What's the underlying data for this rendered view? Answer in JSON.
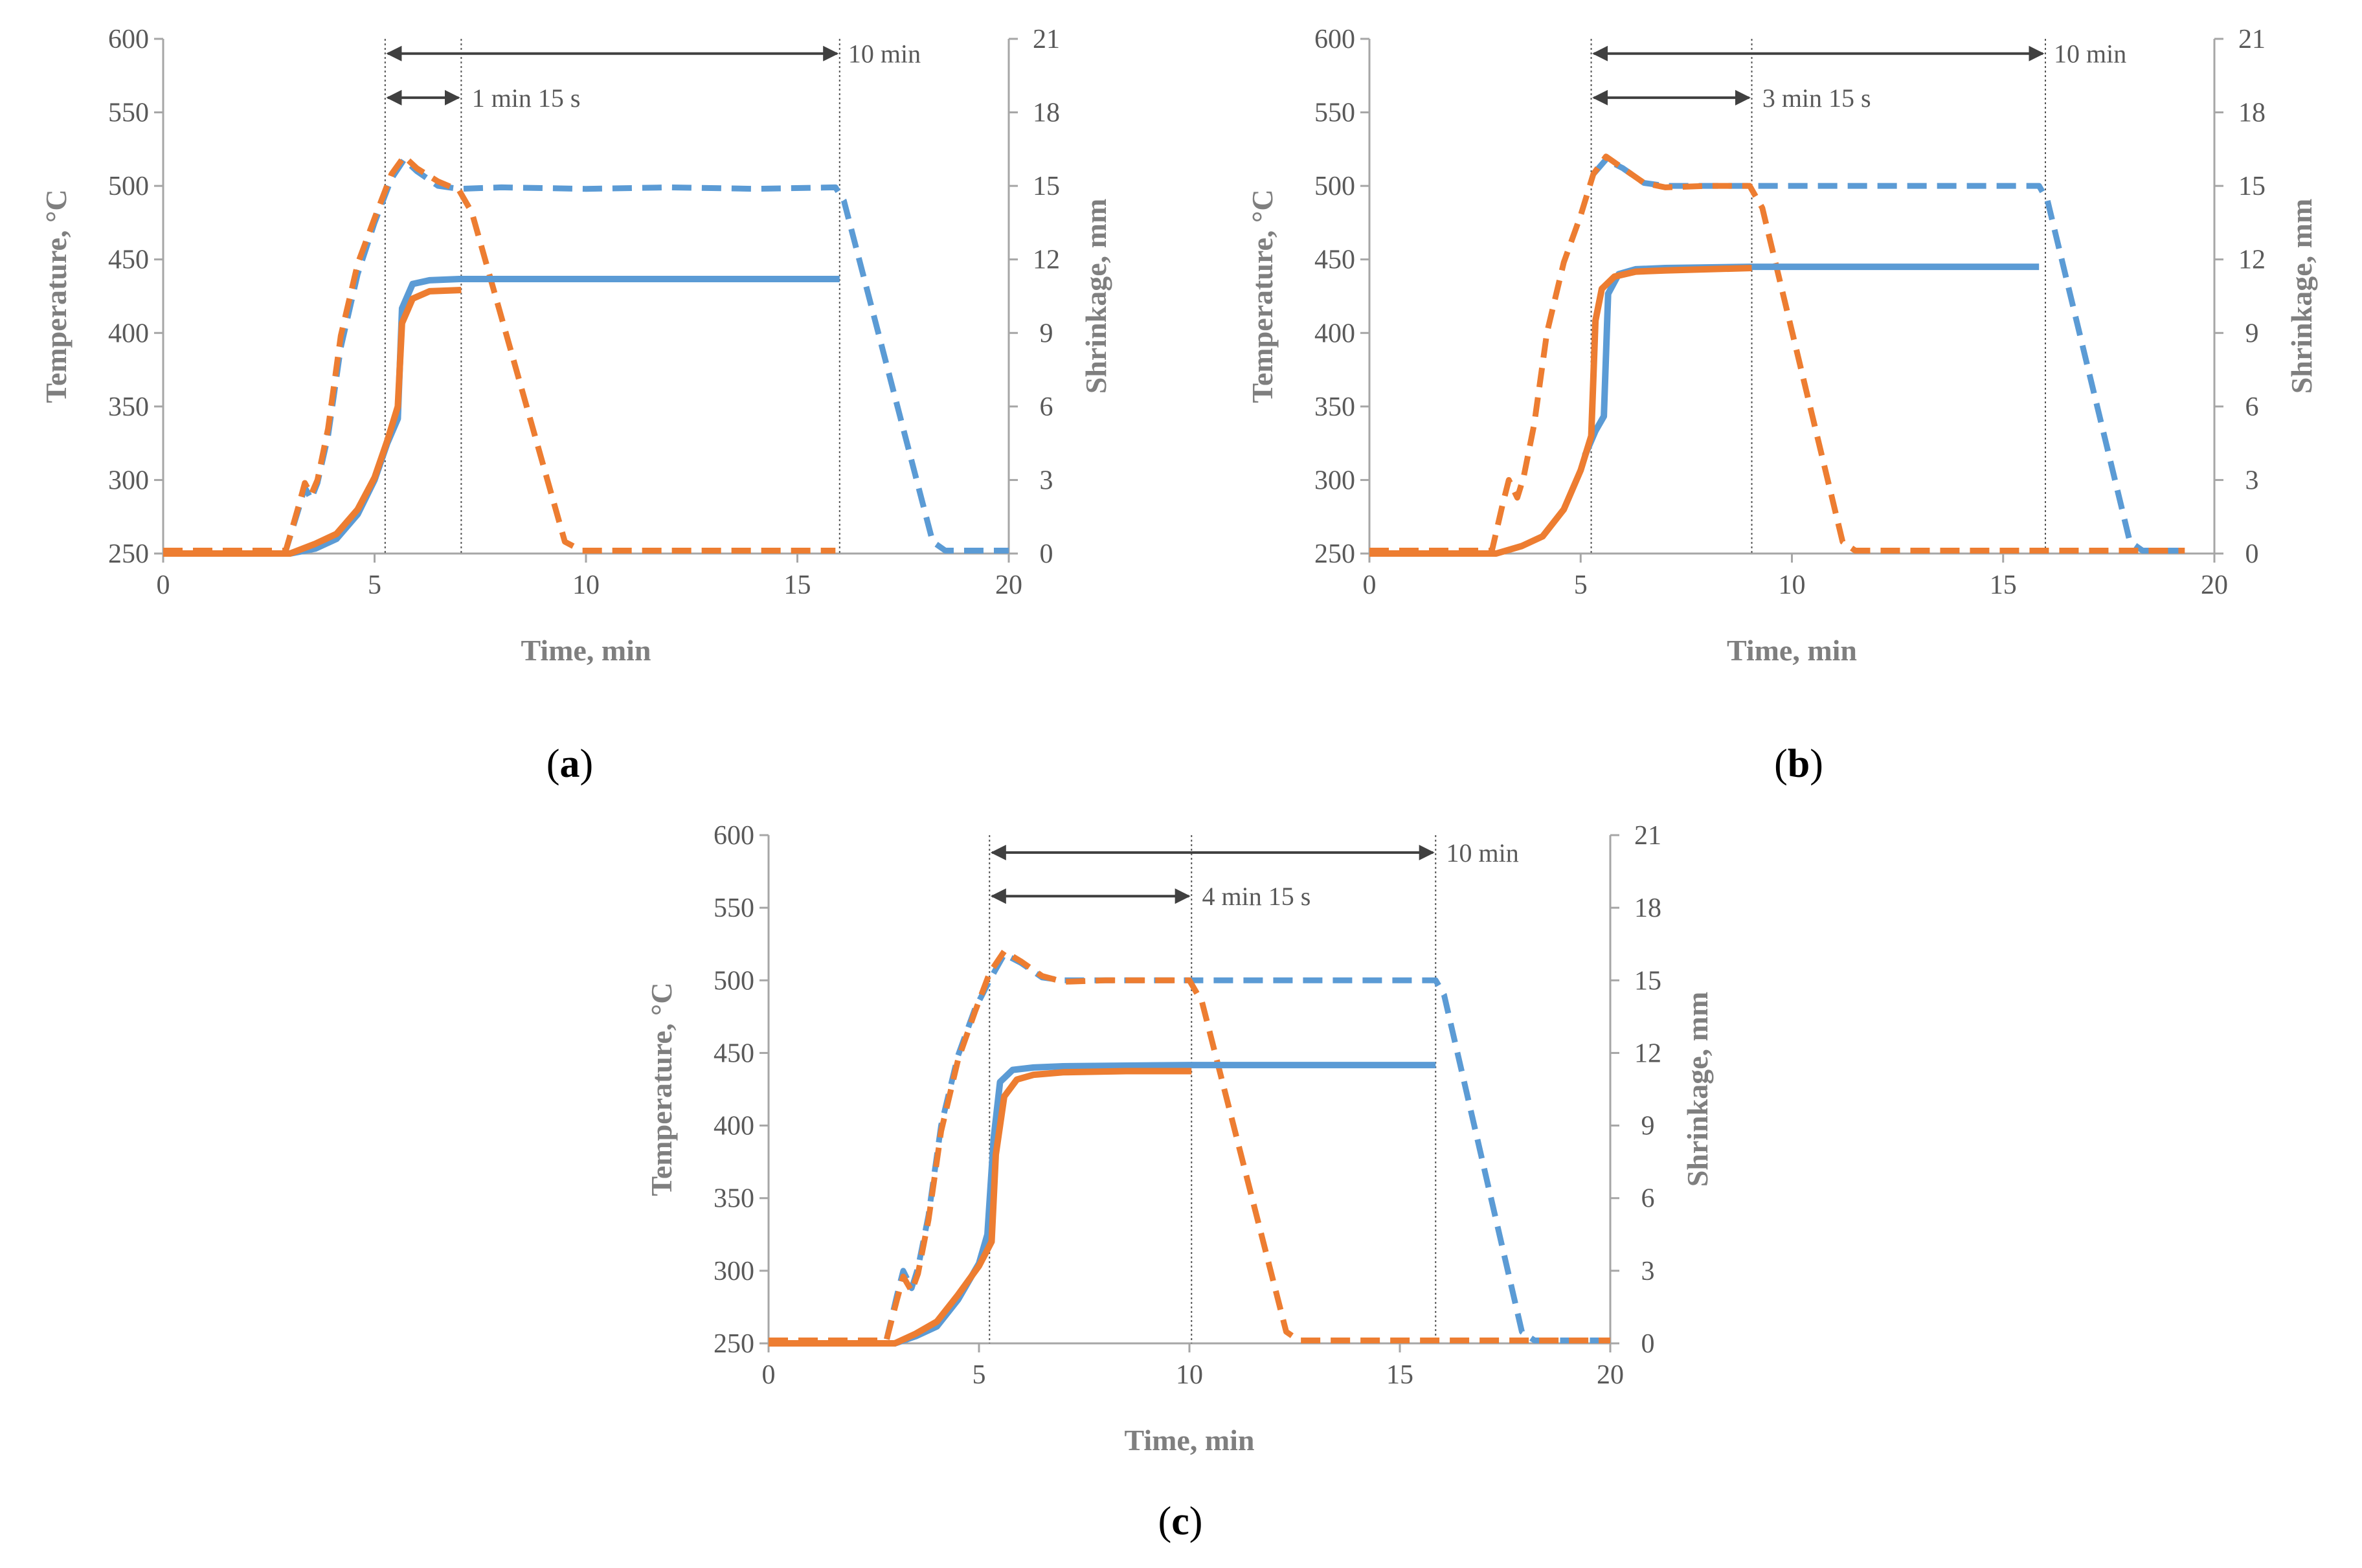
{
  "figure": {
    "colors": {
      "blue": "#5B9BD5",
      "orange": "#ED7D31",
      "axis": "#A6A6A6",
      "tick_text": "#595959",
      "label_text": "#7F7F7F",
      "annotation": "#404040"
    }
  },
  "chart_data": [
    {
      "id": "a",
      "type": "line",
      "panel_label": "a",
      "xlabel": "Time, min",
      "ylabel": "Temperature, °C",
      "y2label": "Shrinkage, mm",
      "xlim": [
        0,
        20
      ],
      "ylim": [
        250,
        600
      ],
      "y2lim": [
        0,
        21
      ],
      "x_ticks": [
        "0",
        "5",
        "10",
        "15",
        "20"
      ],
      "y_ticks": [
        "250",
        "300",
        "350",
        "400",
        "450",
        "500",
        "550",
        "600"
      ],
      "y2_ticks": [
        "0",
        "3",
        "6",
        "9",
        "12",
        "15",
        "18",
        "21"
      ],
      "vlines": [
        5.25,
        7.05,
        16.0
      ],
      "annotations": [
        {
          "text": "10 min",
          "x_start": 5.25,
          "x_end": 16.0,
          "y": 590,
          "text_x": 16.2
        },
        {
          "text": "1 min 15 s",
          "x_start": 5.25,
          "x_end": 7.05,
          "y": 560,
          "text_x": 7.3
        }
      ],
      "series": [
        {
          "name": "Temperature (10 min)",
          "axis": "left",
          "style": "dashed",
          "color": "blue",
          "x": [
            0,
            2.9,
            3.2,
            3.35,
            3.5,
            3.65,
            3.9,
            4.2,
            4.6,
            5.0,
            5.4,
            5.7,
            6.0,
            6.5,
            7.0,
            8,
            10,
            12,
            14,
            15.9,
            16.1,
            18.2,
            18.5,
            20
          ],
          "y": [
            252,
            252,
            280,
            295,
            287,
            298,
            330,
            390,
            440,
            475,
            505,
            518,
            510,
            500,
            498,
            499,
            498,
            499,
            498,
            499,
            490,
            258,
            252,
            252
          ]
        },
        {
          "name": "Temperature (1 min 15 s)",
          "axis": "left",
          "style": "dashed",
          "color": "orange",
          "x": [
            0,
            2.9,
            3.2,
            3.35,
            3.5,
            3.65,
            3.9,
            4.2,
            4.6,
            5.0,
            5.4,
            5.7,
            6.0,
            6.5,
            7.0,
            7.3,
            9.5,
            9.9,
            15.9
          ],
          "y": [
            252,
            252,
            282,
            298,
            290,
            300,
            335,
            398,
            447,
            478,
            508,
            520,
            512,
            503,
            497,
            482,
            258,
            252,
            252
          ]
        },
        {
          "name": "Shrinkage (10 min)",
          "axis": "right",
          "style": "solid",
          "color": "blue",
          "x": [
            0,
            3.0,
            3.6,
            4.1,
            4.6,
            5.0,
            5.3,
            5.55,
            5.65,
            5.9,
            6.3,
            7.0,
            10,
            13,
            16.0
          ],
          "y": [
            0,
            0,
            0.2,
            0.6,
            1.6,
            3.0,
            4.5,
            5.5,
            10.0,
            11.0,
            11.15,
            11.2,
            11.2,
            11.2,
            11.2
          ]
        },
        {
          "name": "Shrinkage (1 min 15 s)",
          "axis": "right",
          "style": "solid",
          "color": "orange",
          "x": [
            0,
            3.0,
            3.6,
            4.1,
            4.6,
            5.0,
            5.3,
            5.55,
            5.65,
            5.9,
            6.3,
            7.05
          ],
          "y": [
            0,
            0,
            0.4,
            0.8,
            1.8,
            3.1,
            4.6,
            6.0,
            9.4,
            10.4,
            10.7,
            10.75
          ]
        }
      ]
    },
    {
      "id": "b",
      "type": "line",
      "panel_label": "b",
      "xlabel": "Time, min",
      "ylabel": "Temperature, °C",
      "y2label": "Shrinkage, mm",
      "xlim": [
        0,
        20
      ],
      "ylim": [
        250,
        600
      ],
      "y2lim": [
        0,
        21
      ],
      "x_ticks": [
        "0",
        "5",
        "10",
        "15",
        "20"
      ],
      "y_ticks": [
        "250",
        "300",
        "350",
        "400",
        "450",
        "500",
        "550",
        "600"
      ],
      "y2_ticks": [
        "0",
        "3",
        "6",
        "9",
        "12",
        "15",
        "18",
        "21"
      ],
      "vlines": [
        5.25,
        9.05,
        16.0
      ],
      "annotations": [
        {
          "text": "10 min",
          "x_start": 5.25,
          "x_end": 16.0,
          "y": 590,
          "text_x": 16.2
        },
        {
          "text": "3 min 15 s",
          "x_start": 5.25,
          "x_end": 9.05,
          "y": 560,
          "text_x": 9.3
        }
      ],
      "series": [
        {
          "name": "Temperature (10 min)",
          "axis": "left",
          "style": "dashed",
          "color": "blue",
          "x": [
            5.3,
            5.6,
            6.0,
            6.5,
            7.0,
            8,
            10,
            12,
            14,
            15.85,
            16.05,
            18.0,
            18.3,
            19.3
          ],
          "y": [
            508,
            518,
            512,
            502,
            500,
            500,
            500,
            500,
            500,
            500,
            490,
            258,
            252,
            252
          ]
        },
        {
          "name": "Temperature (3 min 15 s)",
          "axis": "left",
          "style": "dashed",
          "color": "orange",
          "x": [
            0,
            2.9,
            3.15,
            3.3,
            3.5,
            3.65,
            3.9,
            4.2,
            4.6,
            5.0,
            5.3,
            5.6,
            6.0,
            6.5,
            7.0,
            8,
            9.0,
            9.3,
            11.2,
            11.5,
            19.3
          ],
          "y": [
            252,
            252,
            283,
            300,
            288,
            302,
            338,
            400,
            448,
            480,
            508,
            520,
            512,
            502,
            499,
            500,
            500,
            485,
            258,
            252,
            252
          ]
        },
        {
          "name": "Shrinkage (10 min)",
          "axis": "right",
          "style": "solid",
          "color": "blue",
          "x": [
            5.1,
            5.35,
            5.55,
            5.65,
            5.9,
            6.3,
            7.0,
            9,
            12,
            15.85
          ],
          "y": [
            4.0,
            5.0,
            5.6,
            10.6,
            11.4,
            11.6,
            11.65,
            11.7,
            11.7,
            11.7
          ]
        },
        {
          "name": "Shrinkage (3 min 15 s)",
          "axis": "right",
          "style": "solid",
          "color": "orange",
          "x": [
            0,
            3.0,
            3.6,
            4.1,
            4.6,
            5.0,
            5.25,
            5.35,
            5.5,
            5.8,
            6.3,
            7.0,
            8,
            9.05
          ],
          "y": [
            0,
            0,
            0.3,
            0.7,
            1.8,
            3.4,
            4.8,
            9.5,
            10.8,
            11.3,
            11.5,
            11.55,
            11.6,
            11.65
          ]
        }
      ]
    },
    {
      "id": "c",
      "type": "line",
      "panel_label": "c",
      "xlabel": "Time, min",
      "ylabel": "Temperature, °C",
      "y2label": "Shrinkage, mm",
      "xlim": [
        0,
        20
      ],
      "ylim": [
        250,
        600
      ],
      "y2lim": [
        0,
        21
      ],
      "x_ticks": [
        "0",
        "5",
        "10",
        "15",
        "20"
      ],
      "y_ticks": [
        "250",
        "300",
        "350",
        "400",
        "450",
        "500",
        "550",
        "600"
      ],
      "y2_ticks": [
        "0",
        "3",
        "6",
        "9",
        "12",
        "15",
        "18",
        "21"
      ],
      "vlines": [
        5.25,
        10.05,
        15.85
      ],
      "annotations": [
        {
          "text": "10 min",
          "x_start": 5.25,
          "x_end": 15.85,
          "y": 588,
          "text_x": 16.1
        },
        {
          "text": "4 min 15 s",
          "x_start": 5.25,
          "x_end": 10.05,
          "y": 558,
          "text_x": 10.3
        }
      ],
      "series": [
        {
          "name": "Temperature (10 min)",
          "axis": "left",
          "style": "dashed",
          "color": "blue",
          "x": [
            0,
            2.8,
            3.05,
            3.2,
            3.4,
            3.55,
            3.8,
            4.1,
            4.5,
            4.9,
            5.25,
            5.6,
            6.0,
            6.5,
            7.0,
            8,
            10,
            12,
            14,
            15.85,
            16.05,
            17.9,
            18.2,
            20
          ],
          "y": [
            252,
            252,
            283,
            300,
            288,
            302,
            338,
            400,
            448,
            480,
            500,
            518,
            512,
            502,
            500,
            500,
            500,
            500,
            500,
            500,
            490,
            258,
            252,
            252
          ]
        },
        {
          "name": "Temperature (4 min 15 s)",
          "axis": "left",
          "style": "dashed",
          "color": "orange",
          "x": [
            0,
            2.8,
            3.05,
            3.2,
            3.4,
            3.55,
            3.8,
            4.1,
            4.5,
            4.9,
            5.25,
            5.6,
            6.0,
            6.5,
            7.0,
            8,
            10.0,
            10.3,
            12.3,
            12.6,
            20
          ],
          "y": [
            252,
            252,
            280,
            296,
            286,
            298,
            335,
            396,
            445,
            478,
            505,
            520,
            513,
            503,
            499,
            500,
            500,
            485,
            258,
            252,
            252
          ]
        },
        {
          "name": "Shrinkage (10 min)",
          "axis": "right",
          "style": "solid",
          "color": "blue",
          "x": [
            0,
            3.0,
            3.5,
            4.0,
            4.5,
            5.0,
            5.2,
            5.35,
            5.5,
            5.8,
            6.3,
            7.0,
            10,
            13,
            15.85
          ],
          "y": [
            0,
            0,
            0.3,
            0.7,
            1.8,
            3.3,
            4.5,
            8.5,
            10.8,
            11.3,
            11.4,
            11.45,
            11.5,
            11.5,
            11.5
          ]
        },
        {
          "name": "Shrinkage (4 min 15 s)",
          "axis": "right",
          "style": "solid",
          "color": "orange",
          "x": [
            0,
            3.0,
            3.5,
            4.0,
            4.5,
            5.0,
            5.3,
            5.4,
            5.6,
            5.9,
            6.3,
            7.0,
            8.5,
            10.05
          ],
          "y": [
            0,
            0,
            0.4,
            0.9,
            2.0,
            3.2,
            4.2,
            7.8,
            10.2,
            10.9,
            11.1,
            11.2,
            11.25,
            11.25
          ]
        }
      ]
    }
  ]
}
